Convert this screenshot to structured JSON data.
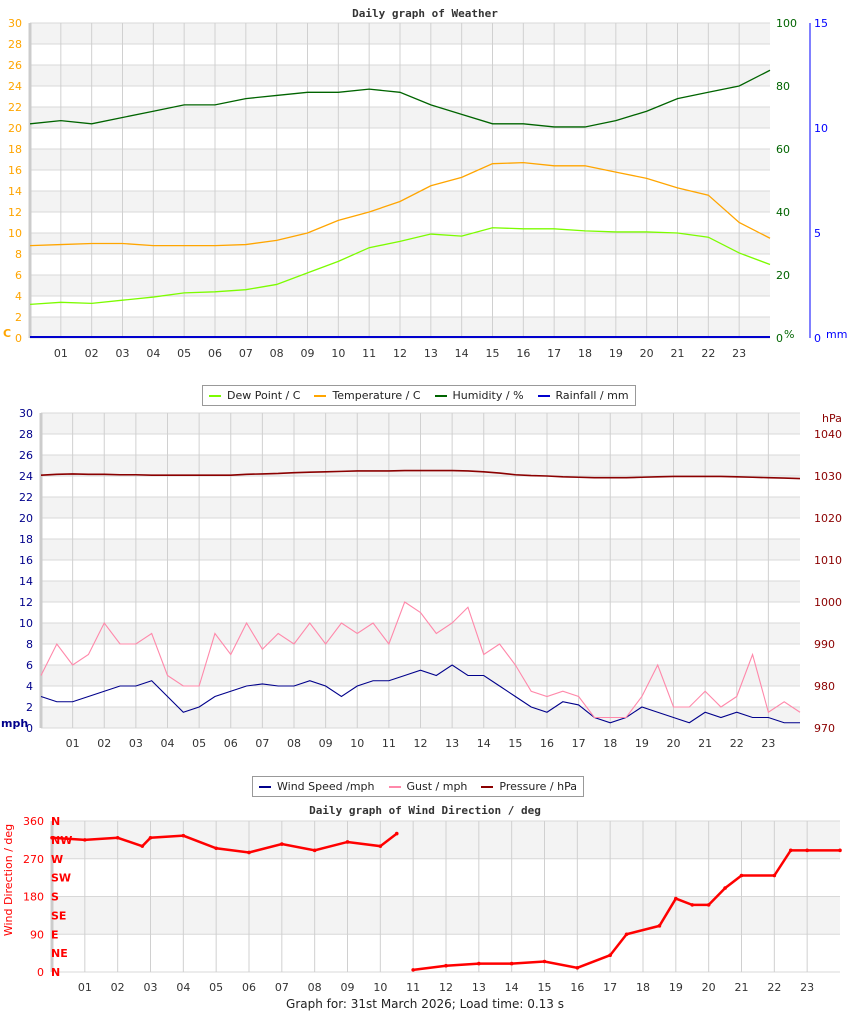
{
  "chart_data": [
    {
      "type": "line",
      "title": "Daily graph of Weather",
      "x": [
        0,
        1,
        2,
        3,
        4,
        5,
        6,
        7,
        8,
        9,
        10,
        11,
        12,
        13,
        14,
        15,
        16,
        17,
        18,
        19,
        20,
        21,
        22,
        23,
        24
      ],
      "xticks": [
        "01",
        "02",
        "03",
        "04",
        "05",
        "06",
        "07",
        "08",
        "09",
        "10",
        "11",
        "12",
        "13",
        "14",
        "15",
        "16",
        "17",
        "18",
        "19",
        "20",
        "21",
        "22",
        "23"
      ],
      "left_axis": {
        "unit": "C",
        "range": [
          0,
          30
        ],
        "ticks": [
          0,
          2,
          4,
          6,
          8,
          10,
          12,
          14,
          16,
          18,
          20,
          22,
          24,
          26,
          28,
          30
        ],
        "color": "#ffa500"
      },
      "right_axes": [
        {
          "unit": "%",
          "range": [
            0,
            100
          ],
          "ticks": [
            0,
            20,
            40,
            60,
            80,
            100
          ],
          "color": "#006400"
        },
        {
          "unit": "mm",
          "range": [
            0,
            15
          ],
          "ticks": [
            0,
            5,
            10,
            15
          ],
          "color": "#0000ff"
        }
      ],
      "series": [
        {
          "name": "Dew Point / C",
          "color": "#7cfc00",
          "axis": 0,
          "values": [
            3.2,
            3.4,
            3.3,
            3.6,
            3.9,
            4.3,
            4.4,
            4.6,
            5.1,
            6.2,
            7.3,
            8.6,
            9.2,
            9.9,
            9.7,
            10.5,
            10.4,
            10.4,
            10.2,
            10.1,
            10.1,
            10.0,
            9.6,
            8.1,
            7.0
          ]
        },
        {
          "name": "Temperature / C",
          "color": "#ffa500",
          "axis": 0,
          "values": [
            8.8,
            8.9,
            9.0,
            9.0,
            8.8,
            8.8,
            8.8,
            8.9,
            9.3,
            10.0,
            11.2,
            12.0,
            13.0,
            14.5,
            15.3,
            16.6,
            16.7,
            16.4,
            16.4,
            15.8,
            15.2,
            14.3,
            13.6,
            11.0,
            9.5
          ]
        },
        {
          "name": "Humidity / %",
          "color": "#006400",
          "axis": 1,
          "values": [
            68,
            69,
            68,
            70,
            72,
            74,
            74,
            76,
            77,
            78,
            78,
            79,
            78,
            74,
            71,
            68,
            68,
            67,
            67,
            69,
            72,
            76,
            78,
            80,
            85
          ]
        },
        {
          "name": "Rainfall / mm",
          "color": "#0000cd",
          "axis": 2,
          "values": [
            0,
            0,
            0,
            0,
            0,
            0,
            0,
            0,
            0,
            0,
            0,
            0,
            0,
            0,
            0,
            0,
            0,
            0,
            0,
            0,
            0,
            0,
            0,
            0,
            0
          ]
        }
      ],
      "grid": true,
      "legend": "bottom"
    },
    {
      "type": "line",
      "x": [
        0,
        0.5,
        1,
        1.5,
        2,
        2.5,
        3,
        3.5,
        4,
        4.5,
        5,
        5.5,
        6,
        6.5,
        7,
        7.5,
        8,
        8.5,
        9,
        9.5,
        10,
        10.5,
        11,
        11.5,
        12,
        12.5,
        13,
        13.5,
        14,
        14.5,
        15,
        15.5,
        16,
        16.5,
        17,
        17.5,
        18,
        18.5,
        19,
        19.5,
        20,
        20.5,
        21,
        21.5,
        22,
        22.5,
        23,
        23.5,
        24
      ],
      "xticks": [
        "01",
        "02",
        "03",
        "04",
        "05",
        "06",
        "07",
        "08",
        "09",
        "10",
        "11",
        "12",
        "13",
        "14",
        "15",
        "16",
        "17",
        "18",
        "19",
        "20",
        "21",
        "22",
        "23"
      ],
      "left_axis": {
        "unit": "mph",
        "range": [
          0,
          30
        ],
        "ticks": [
          0,
          2,
          4,
          6,
          8,
          10,
          12,
          14,
          16,
          18,
          20,
          22,
          24,
          26,
          28,
          30
        ],
        "color": "#00008b"
      },
      "right_axes": [
        {
          "unit": "hPa",
          "range": [
            970,
            1040
          ],
          "ticks": [
            970,
            980,
            990,
            1000,
            1010,
            1020,
            1030,
            1040
          ],
          "color": "#8b0000"
        }
      ],
      "series": [
        {
          "name": "Wind Speed /mph",
          "color": "#00008b",
          "axis": 0,
          "values": [
            3,
            2.5,
            2.5,
            3,
            3.5,
            4,
            4,
            4.5,
            3,
            1.5,
            2,
            3,
            3.5,
            4,
            4.2,
            4,
            4,
            4.5,
            4,
            3,
            4,
            4.5,
            4.5,
            5,
            5.5,
            5,
            6,
            5,
            5,
            4,
            3,
            2,
            1.5,
            2.5,
            2.2,
            1,
            0.5,
            1,
            2,
            1.5,
            1,
            0.5,
            1.5,
            1,
            1.5,
            1,
            1,
            0.5,
            0.5
          ]
        },
        {
          "name": "Gust / mph",
          "color": "#ff88aa",
          "axis": 0,
          "values": [
            5,
            8,
            6,
            7,
            10,
            8,
            8,
            9,
            5,
            4,
            4,
            9,
            7,
            10,
            7.5,
            9,
            8,
            10,
            8,
            10,
            9,
            10,
            8,
            12,
            11,
            9,
            10,
            11.5,
            7,
            8,
            6,
            3.5,
            3,
            3.5,
            3,
            1,
            1,
            1,
            3,
            6,
            2,
            2,
            3.5,
            2,
            3,
            7,
            1.5,
            2.5,
            1.5
          ]
        },
        {
          "name": "Pressure / hPa",
          "color": "#8b0000",
          "axis": 1,
          "values": [
            1030.2,
            1030.4,
            1030.5,
            1030.4,
            1030.4,
            1030.3,
            1030.3,
            1030.2,
            1030.2,
            1030.2,
            1030.2,
            1030.2,
            1030.2,
            1030.4,
            1030.5,
            1030.6,
            1030.8,
            1030.9,
            1031.0,
            1031.1,
            1031.2,
            1031.2,
            1031.2,
            1031.3,
            1031.3,
            1031.3,
            1031.3,
            1031.2,
            1031.0,
            1030.7,
            1030.3,
            1030.1,
            1030.0,
            1029.8,
            1029.7,
            1029.6,
            1029.6,
            1029.6,
            1029.7,
            1029.8,
            1029.9,
            1029.9,
            1029.9,
            1029.9,
            1029.8,
            1029.7,
            1029.6,
            1029.5,
            1029.4
          ]
        }
      ],
      "grid": true,
      "legend": "bottom"
    },
    {
      "type": "scatter",
      "title": "Daily graph of Wind Direction / deg",
      "ylabel": "Wind Direction / deg",
      "x": [
        0,
        1,
        2,
        2.75,
        3,
        4,
        5,
        6,
        7,
        8,
        9,
        10,
        10.5,
        11,
        12,
        13,
        14,
        15,
        16,
        17,
        17.5,
        18.5,
        19,
        19.5,
        20,
        20.5,
        21,
        22,
        22.5,
        23,
        24
      ],
      "values": [
        320,
        315,
        320,
        300,
        320,
        325,
        295,
        285,
        305,
        290,
        310,
        300,
        330,
        5,
        15,
        20,
        20,
        25,
        10,
        40,
        90,
        110,
        175,
        160,
        160,
        200,
        230,
        230,
        290,
        290,
        290
      ],
      "xticks": [
        "01",
        "02",
        "03",
        "04",
        "05",
        "06",
        "07",
        "08",
        "09",
        "10",
        "11",
        "12",
        "13",
        "14",
        "15",
        "16",
        "17",
        "18",
        "19",
        "20",
        "21",
        "22",
        "23"
      ],
      "yticks": [
        0,
        90,
        180,
        270,
        360
      ],
      "compass": [
        "N",
        "NE",
        "E",
        "SE",
        "S",
        "SW",
        "W",
        "NW",
        "N"
      ],
      "ylim": [
        0,
        360
      ],
      "color": "#ff0000",
      "grid": true
    }
  ],
  "footer": "Graph for: 31st March 2026; Load time: 0.13 s"
}
